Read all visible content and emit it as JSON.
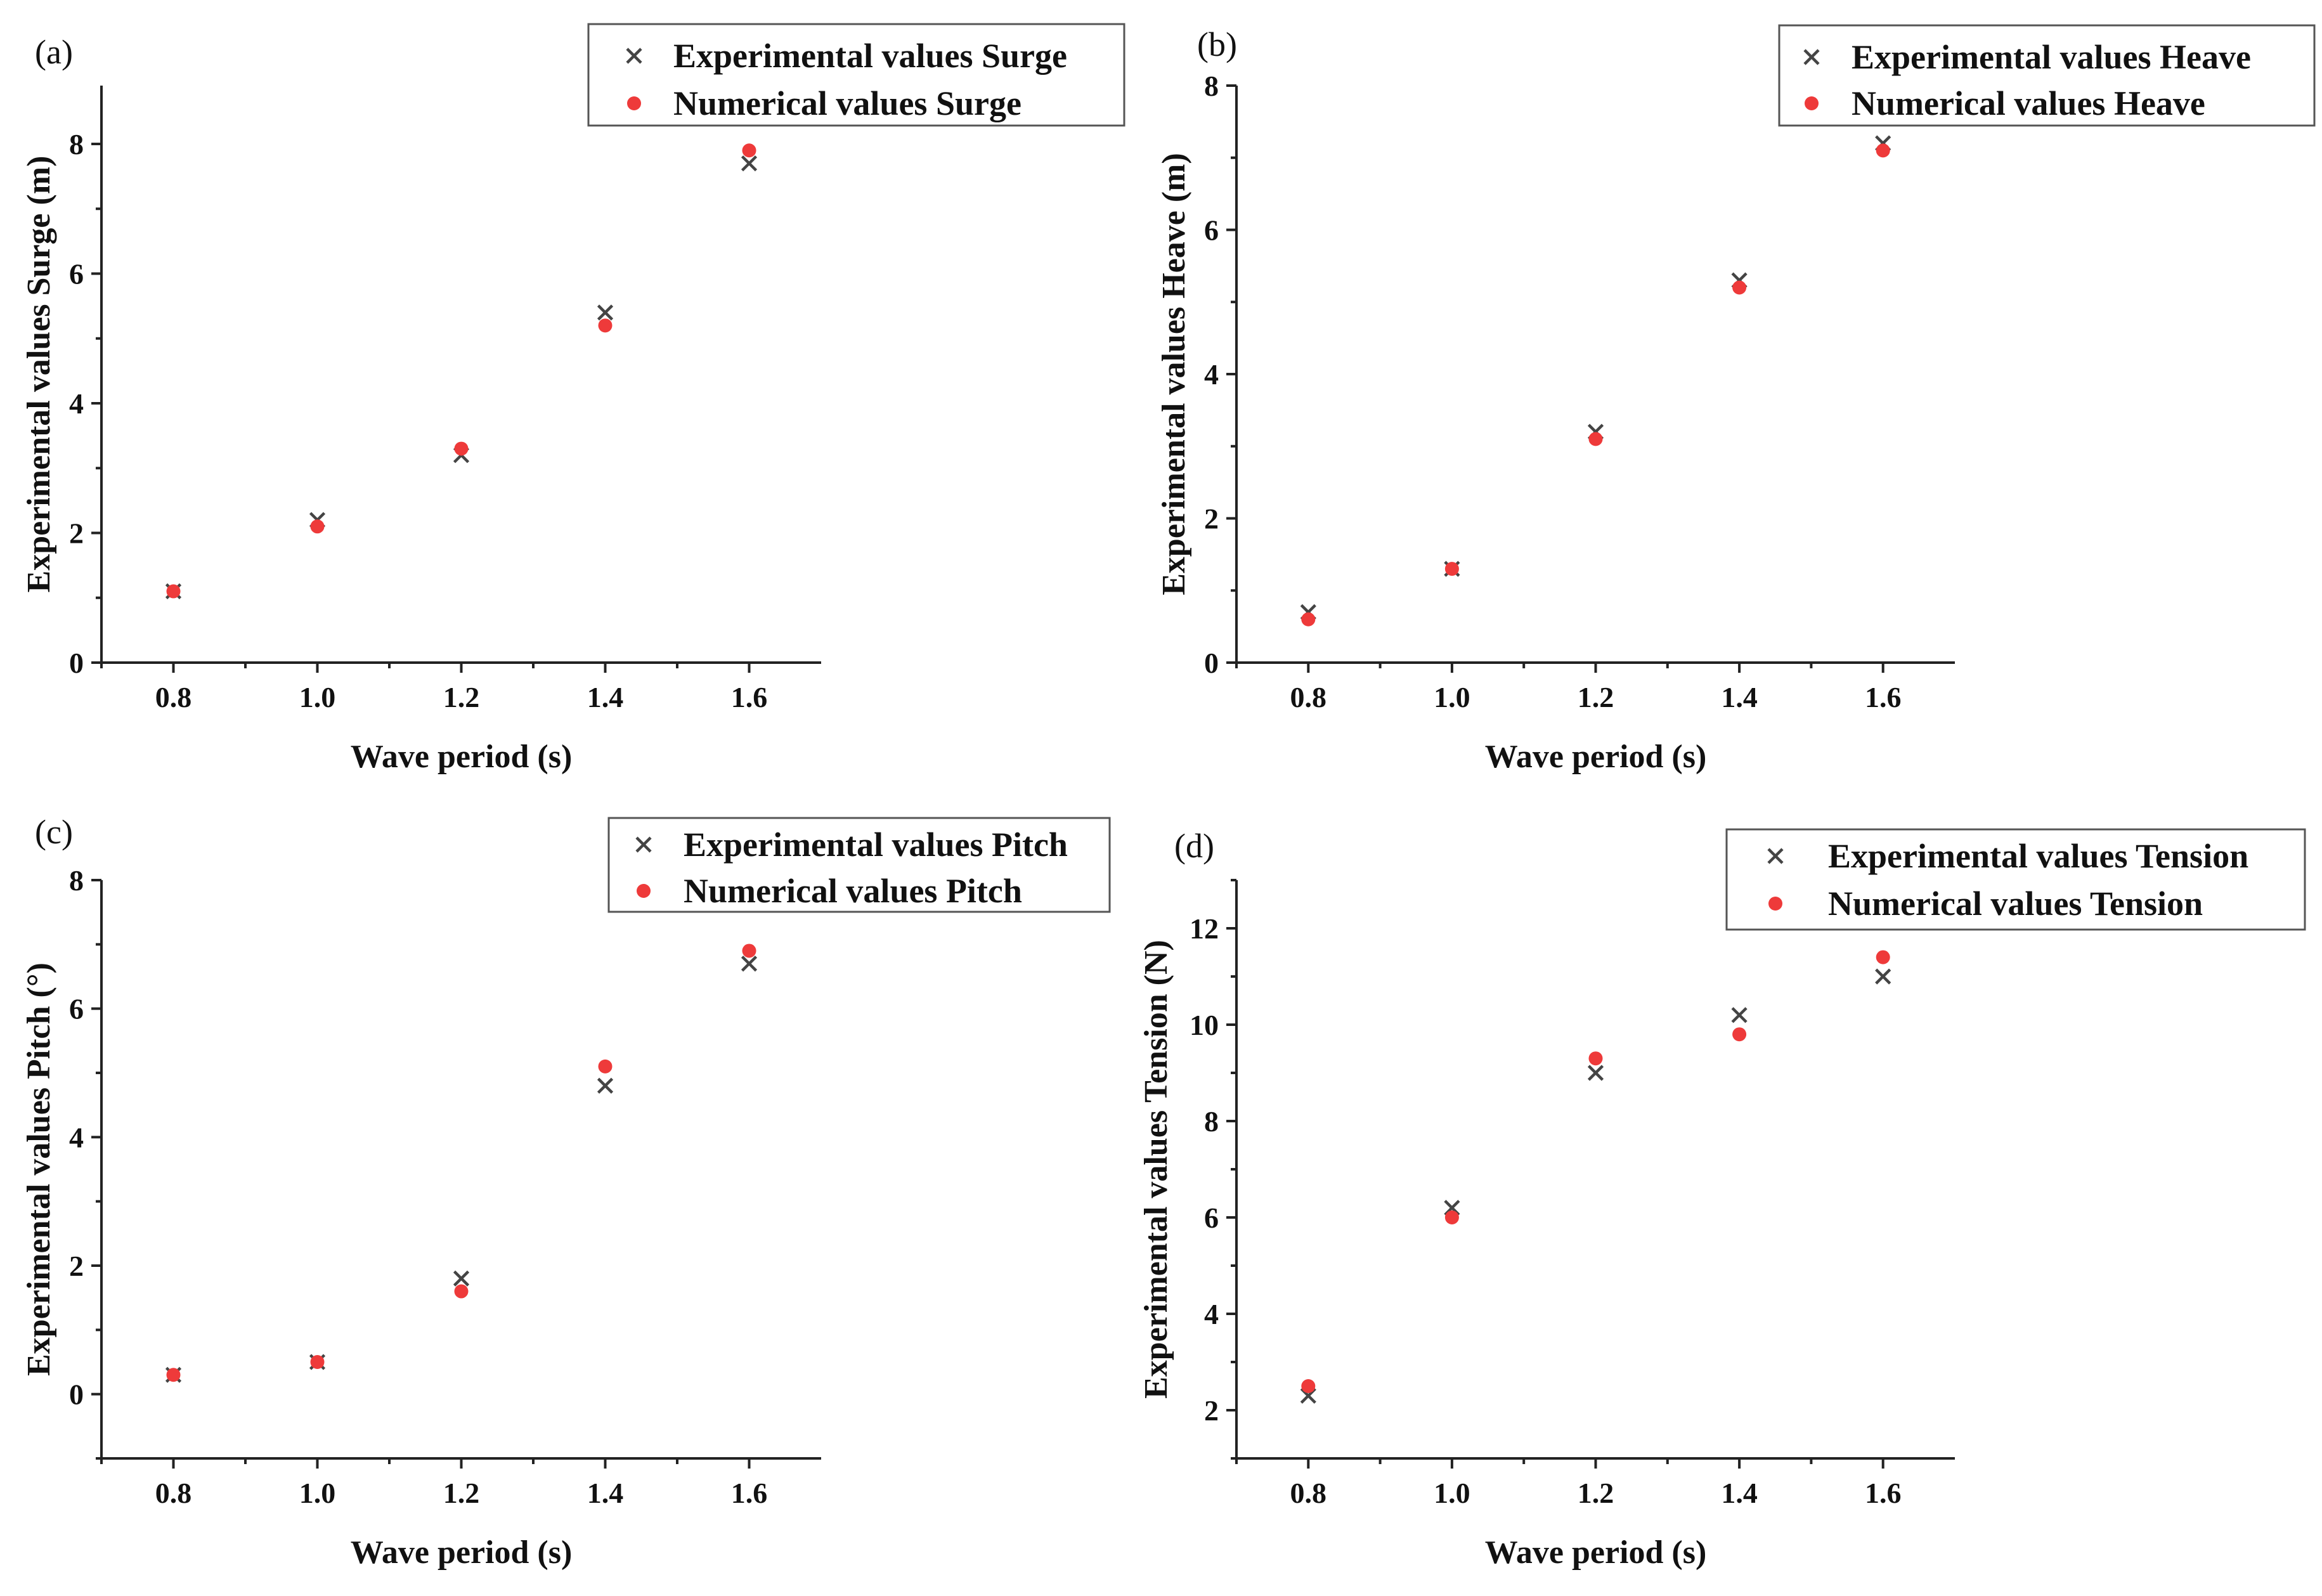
{
  "colors": {
    "experimental": "#444444",
    "numerical": "#ee3a3a",
    "axis": "#222222"
  },
  "chart_data": [
    {
      "type": "scatter",
      "panel_label": "(a)",
      "title": "",
      "xlabel": "Wave period (s)",
      "ylabel": "Experimental values Surge (m)",
      "xlim": [
        0.7,
        1.7
      ],
      "ylim": [
        0,
        8.9
      ],
      "x_ticks": [
        0.8,
        1.0,
        1.2,
        1.4,
        1.6
      ],
      "x_tick_labels": [
        "0.8",
        "1.0",
        "1.2",
        "1.4",
        "1.6"
      ],
      "y_ticks": [
        0,
        2,
        4,
        6,
        8
      ],
      "y_tick_labels": [
        "0",
        "2",
        "4",
        "6",
        "8"
      ],
      "legend_position": "top-right",
      "series": [
        {
          "name": "Experimental values Surge",
          "marker": "x",
          "x": [
            0.8,
            1.0,
            1.2,
            1.4,
            1.6
          ],
          "y": [
            1.1,
            2.2,
            3.2,
            5.4,
            7.7
          ]
        },
        {
          "name": "Numerical values Surge",
          "marker": "circle",
          "x": [
            0.8,
            1.0,
            1.2,
            1.4,
            1.6
          ],
          "y": [
            1.1,
            2.1,
            3.3,
            5.2,
            7.9
          ]
        }
      ]
    },
    {
      "type": "scatter",
      "panel_label": "(b)",
      "title": "",
      "xlabel": "Wave period (s)",
      "ylabel": "Experimental values Heave (m)",
      "xlim": [
        0.7,
        1.7
      ],
      "ylim": [
        0,
        8
      ],
      "x_ticks": [
        0.8,
        1.0,
        1.2,
        1.4,
        1.6
      ],
      "x_tick_labels": [
        "0.8",
        "1.0",
        "1.2",
        "1.4",
        "1.6"
      ],
      "y_ticks": [
        0,
        2,
        4,
        6,
        8
      ],
      "y_tick_labels": [
        "0",
        "2",
        "4",
        "6",
        "8"
      ],
      "legend_position": "top-right",
      "series": [
        {
          "name": "Experimental values Heave",
          "marker": "x",
          "x": [
            0.8,
            1.0,
            1.2,
            1.4,
            1.6
          ],
          "y": [
            0.7,
            1.3,
            3.2,
            5.3,
            7.2
          ]
        },
        {
          "name": "Numerical values Heave",
          "marker": "circle",
          "x": [
            0.8,
            1.0,
            1.2,
            1.4,
            1.6
          ],
          "y": [
            0.6,
            1.3,
            3.1,
            5.2,
            7.1
          ]
        }
      ]
    },
    {
      "type": "scatter",
      "panel_label": "(c)",
      "title": "",
      "xlabel": "Wave period (s)",
      "ylabel": "Experimental values Pitch (°)",
      "xlim": [
        0.7,
        1.7
      ],
      "ylim": [
        -1,
        8
      ],
      "x_ticks": [
        0.8,
        1.0,
        1.2,
        1.4,
        1.6
      ],
      "x_tick_labels": [
        "0.8",
        "1.0",
        "1.2",
        "1.4",
        "1.6"
      ],
      "y_ticks": [
        0,
        2,
        4,
        6,
        8
      ],
      "y_tick_labels": [
        "0",
        "2",
        "4",
        "6",
        "8"
      ],
      "legend_position": "top-right",
      "series": [
        {
          "name": "Experimental values Pitch",
          "marker": "x",
          "x": [
            0.8,
            1.0,
            1.2,
            1.4,
            1.6
          ],
          "y": [
            0.3,
            0.5,
            1.8,
            4.8,
            6.7
          ]
        },
        {
          "name": "Numerical values Pitch",
          "marker": "circle",
          "x": [
            0.8,
            1.0,
            1.2,
            1.4,
            1.6
          ],
          "y": [
            0.3,
            0.5,
            1.6,
            5.1,
            6.9
          ]
        }
      ]
    },
    {
      "type": "scatter",
      "panel_label": "(d)",
      "title": "",
      "xlabel": "Wave period (s)",
      "ylabel": "Experimental values Tension (N)",
      "xlim": [
        0.7,
        1.7
      ],
      "ylim": [
        1,
        13
      ],
      "x_ticks": [
        0.8,
        1.0,
        1.2,
        1.4,
        1.6
      ],
      "x_tick_labels": [
        "0.8",
        "1.0",
        "1.2",
        "1.4",
        "1.6"
      ],
      "y_ticks": [
        2,
        4,
        6,
        8,
        10,
        12
      ],
      "y_tick_labels": [
        "2",
        "4",
        "6",
        "8",
        "10",
        "12"
      ],
      "legend_position": "top-right",
      "series": [
        {
          "name": "Experimental values Tension",
          "marker": "x",
          "x": [
            0.8,
            1.0,
            1.2,
            1.4,
            1.6
          ],
          "y": [
            2.3,
            6.2,
            9.0,
            10.2,
            11.0
          ]
        },
        {
          "name": "Numerical values Tension",
          "marker": "circle",
          "x": [
            0.8,
            1.0,
            1.2,
            1.4,
            1.6
          ],
          "y": [
            2.5,
            6.0,
            9.3,
            9.8,
            11.4
          ]
        }
      ]
    }
  ]
}
